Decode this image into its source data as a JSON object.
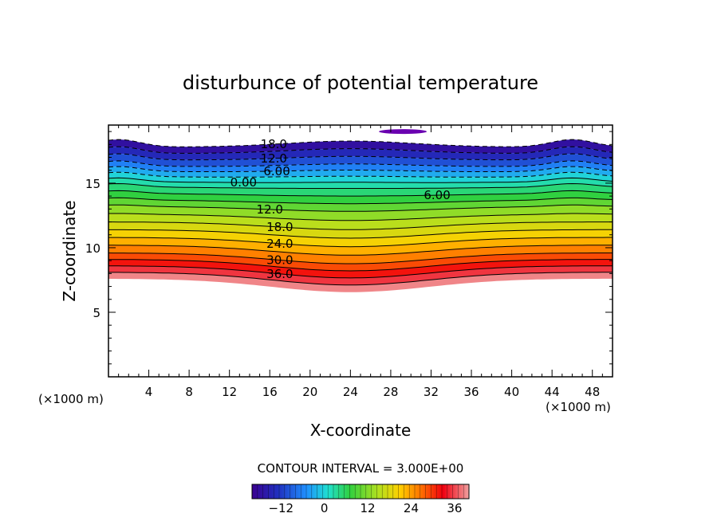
{
  "chart_data": {
    "type": "heatmap",
    "title": "disturbunce of potential temperature",
    "xlabel": "X-coordinate",
    "ylabel": "Z-coordinate",
    "x_unit_left": "(×1000 m)",
    "x_unit_right": "(×1000 m)",
    "xlim": [
      0,
      50
    ],
    "ylim": [
      0,
      19.5
    ],
    "x_ticks": [
      "4",
      "8",
      "12",
      "16",
      "20",
      "24",
      "28",
      "32",
      "36",
      "40",
      "44",
      "48"
    ],
    "y_ticks": [
      "5",
      "10",
      "15"
    ],
    "contour_interval_text": "CONTOUR INTERVAL = 3.000E+00",
    "contour_labels": [
      "18.0",
      "12.0",
      "6.00",
      "0.00",
      "6.00",
      "12.0",
      "18.0",
      "24.0",
      "30.0",
      "36.0"
    ],
    "colorbar_ticks": [
      "−12",
      "0",
      "12",
      "24",
      "36"
    ],
    "colorbar_range": [
      -20,
      40
    ],
    "bands": [
      {
        "value": -18,
        "z": 17.8
      },
      {
        "value": -15,
        "z": 17.3
      },
      {
        "value": -12,
        "z": 16.8
      },
      {
        "value": -9,
        "z": 16.3
      },
      {
        "value": -6,
        "z": 15.9
      },
      {
        "value": -3,
        "z": 15.5
      },
      {
        "value": 0,
        "z": 15.1
      },
      {
        "value": 3,
        "z": 14.7
      },
      {
        "value": 6,
        "z": 14.2
      },
      {
        "value": 9,
        "z": 13.7
      },
      {
        "value": 12,
        "z": 13.2
      },
      {
        "value": 15,
        "z": 12.6
      },
      {
        "value": 18,
        "z": 12.0
      },
      {
        "value": 21,
        "z": 11.4
      },
      {
        "value": 24,
        "z": 10.8
      },
      {
        "value": 27,
        "z": 10.2
      },
      {
        "value": 30,
        "z": 9.6
      },
      {
        "value": 33,
        "z": 9.1
      },
      {
        "value": 36,
        "z": 8.6
      },
      {
        "value": 39,
        "z": 8.1
      }
    ]
  }
}
